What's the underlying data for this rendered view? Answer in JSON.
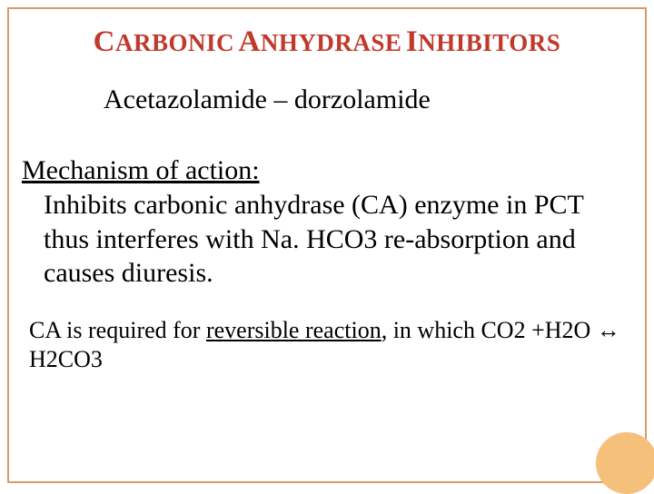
{
  "colors": {
    "title_color": "#c0392b",
    "frame_border": "#d89c6a",
    "circle_fill": "#f4c07a",
    "text_color": "#000000",
    "background": "#ffffff"
  },
  "typography": {
    "title_cap_size": 33,
    "title_rest_size": 27,
    "subtitle_size": 30,
    "heading_size": 30,
    "body_size": 30,
    "body2_size": 26,
    "font_family": "Georgia, Times New Roman, serif"
  },
  "title": {
    "w1_cap": "C",
    "w1_rest": "ARBONIC",
    "w2_cap": "A",
    "w2_rest": "NHYDRASE",
    "w3_cap": "I",
    "w3_rest": "NHIBITORS"
  },
  "subtitle": "Acetazolamide – dorzolamide",
  "mechanism": {
    "heading": "Mechanism of action:",
    "body": "Inhibits carbonic anhydrase (CA) enzyme in PCT thus interferes with Na. HCO3 re-absorption and causes diuresis."
  },
  "note": {
    "lead": "CA is required for ",
    "underlined": "reversible reaction",
    "tail": ", in which CO2 +H2O  ↔ H2CO3"
  }
}
